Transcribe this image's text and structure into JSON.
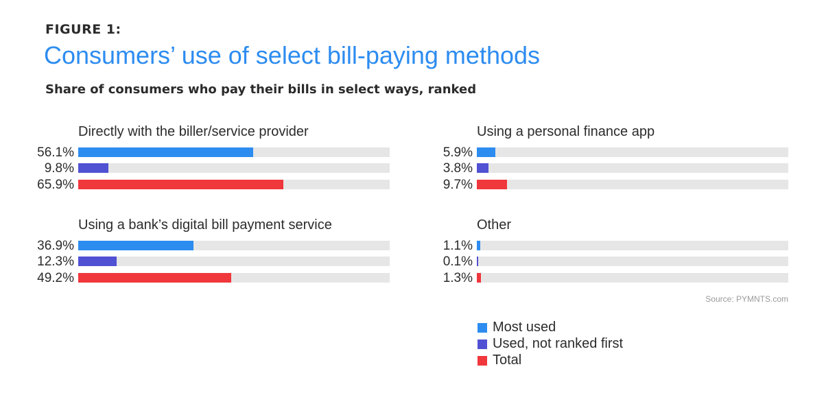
{
  "header": {
    "figure_label": "FIGURE 1:",
    "title": "Consumers’ use of select bill-paying methods",
    "subtitle": "Share of consumers who pay their bills in select ways, ranked"
  },
  "source": "Source: PYMNTS.com",
  "colors": {
    "most_used": "#2d8cf0",
    "used_not_first": "#5151d3",
    "total": "#f0373c",
    "track": "#e6e6e6",
    "title": "#2d8cf0"
  },
  "chart_data": {
    "type": "bar",
    "orientation": "horizontal",
    "xlim": [
      0,
      100
    ],
    "unit": "%",
    "series_names": [
      "Most used",
      "Used, not ranked first",
      "Total"
    ],
    "groups": [
      {
        "title": "Directly with the biller/service provider",
        "values": [
          56.1,
          9.8,
          65.9
        ],
        "labels": [
          "56.1%",
          "9.8%",
          "65.9%"
        ]
      },
      {
        "title": "Using a personal finance app",
        "values": [
          5.9,
          3.8,
          9.7
        ],
        "labels": [
          "5.9%",
          "3.8%",
          "9.7%"
        ]
      },
      {
        "title": "Using a bank’s digital bill payment service",
        "values": [
          36.9,
          12.3,
          49.2
        ],
        "labels": [
          "36.9%",
          "12.3%",
          "49.2%"
        ]
      },
      {
        "title": "Other",
        "values": [
          1.1,
          0.1,
          1.3
        ],
        "labels": [
          "1.1%",
          "0.1%",
          "1.3%"
        ]
      }
    ],
    "legend": [
      {
        "label": "Most used",
        "color": "#2d8cf0"
      },
      {
        "label": "Used, not ranked first",
        "color": "#5151d3"
      },
      {
        "label": "Total",
        "color": "#f0373c"
      }
    ],
    "legend_position": "bottom-right"
  }
}
